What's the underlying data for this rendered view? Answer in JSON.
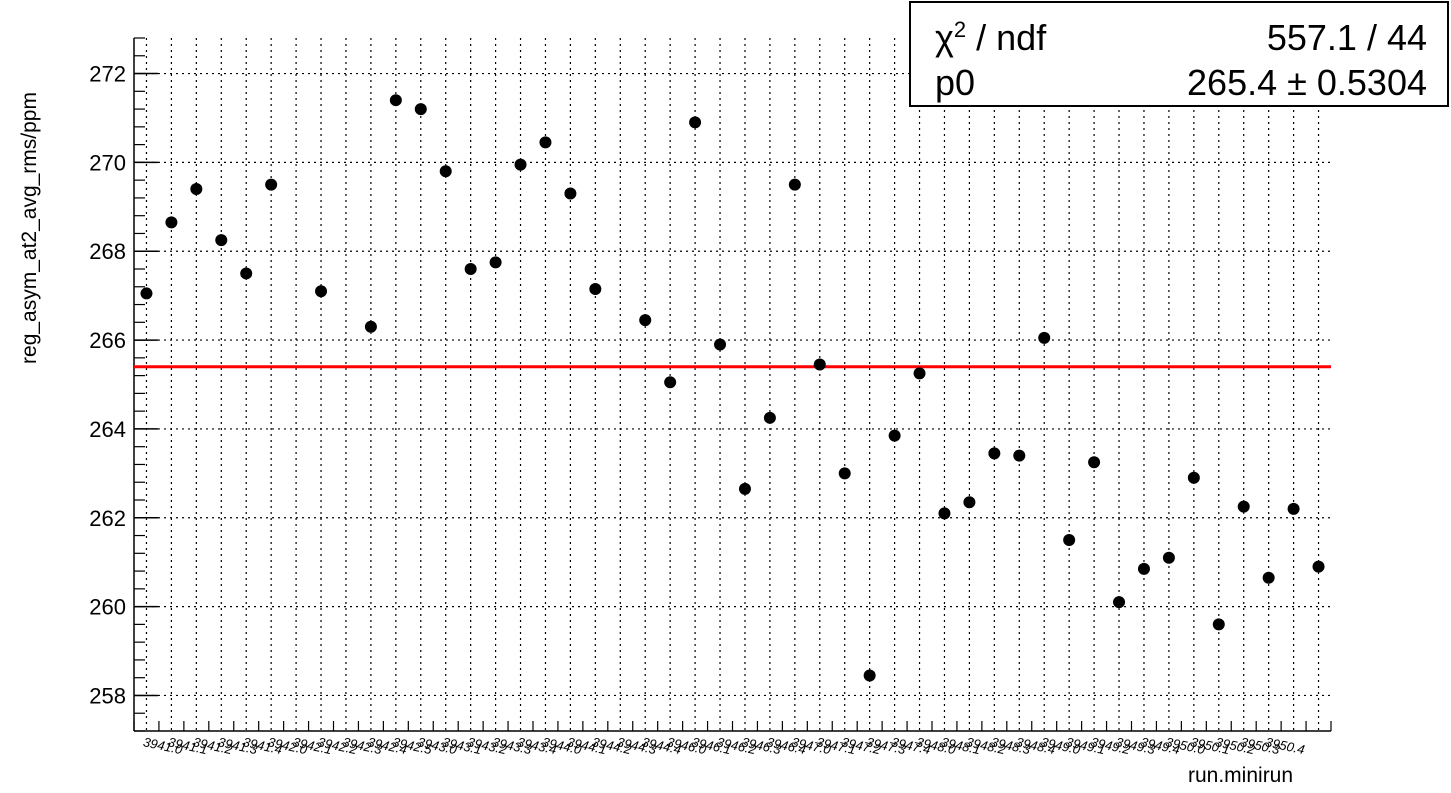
{
  "chart_data": {
    "type": "scatter",
    "xlabel": "run.minirun",
    "ylabel": "reg_asym_at2_avg_rms/ppm",
    "ylim": [
      257.2,
      272.8
    ],
    "y_ticks": [
      258,
      260,
      262,
      264,
      266,
      268,
      270,
      272
    ],
    "grid": true,
    "x_tick_labels": [
      "3941.0",
      "3941.1",
      "3941.2",
      "3941.3",
      "3941.4",
      "3942.0",
      "3942.1",
      "3942.2",
      "3942.3",
      "3942.4",
      "3942.5",
      "3943.0",
      "3943.1",
      "3943.2",
      "3943.3",
      "3943.4",
      "3944.0",
      "3944.1",
      "3944.2",
      "3944.3",
      "3944.4",
      "3946.0",
      "3946.1",
      "3946.2",
      "3946.3",
      "3946.4",
      "3947.0",
      "3947.1",
      "3947.2",
      "3947.3",
      "3947.4",
      "3948.0",
      "3948.1",
      "3948.2",
      "3948.3",
      "3948.4",
      "3949.0",
      "3949.1",
      "3949.2",
      "3949.3",
      "3949.4",
      "3950.0",
      "3950.1",
      "3950.2",
      "3950.3",
      "3950.4"
    ],
    "series": [
      {
        "color": "#000000",
        "values": [
          {
            "x": 0,
            "y": 267.05
          },
          {
            "x": 1,
            "y": 268.65
          },
          {
            "x": 2,
            "y": 269.4
          },
          {
            "x": 3,
            "y": 268.25
          },
          {
            "x": 4,
            "y": 267.5
          },
          {
            "x": 5,
            "y": 269.5
          },
          {
            "x": 7,
            "y": 267.1
          },
          {
            "x": 9,
            "y": 266.3
          },
          {
            "x": 10,
            "y": 271.4
          },
          {
            "x": 11,
            "y": 271.2
          },
          {
            "x": 12,
            "y": 269.8
          },
          {
            "x": 13,
            "y": 267.6
          },
          {
            "x": 14,
            "y": 267.75
          },
          {
            "x": 15,
            "y": 269.95
          },
          {
            "x": 16,
            "y": 270.45
          },
          {
            "x": 17,
            "y": 269.3
          },
          {
            "x": 18,
            "y": 267.15
          },
          {
            "x": 20,
            "y": 266.45
          },
          {
            "x": 21,
            "y": 265.05
          },
          {
            "x": 22,
            "y": 270.9
          },
          {
            "x": 23,
            "y": 265.9
          },
          {
            "x": 24,
            "y": 262.65
          },
          {
            "x": 25,
            "y": 264.25
          },
          {
            "x": 26,
            "y": 269.5
          },
          {
            "x": 27,
            "y": 265.45
          },
          {
            "x": 28,
            "y": 263.0
          },
          {
            "x": 29,
            "y": 258.45
          },
          {
            "x": 30,
            "y": 263.85
          },
          {
            "x": 31,
            "y": 265.25
          },
          {
            "x": 32,
            "y": 262.1
          },
          {
            "x": 33,
            "y": 262.35
          },
          {
            "x": 34,
            "y": 263.45
          },
          {
            "x": 35,
            "y": 263.4
          },
          {
            "x": 36,
            "y": 266.05
          },
          {
            "x": 37,
            "y": 261.5
          },
          {
            "x": 38,
            "y": 263.25
          },
          {
            "x": 39,
            "y": 260.1
          },
          {
            "x": 40,
            "y": 260.85
          },
          {
            "x": 41,
            "y": 261.1
          },
          {
            "x": 42,
            "y": 262.9
          },
          {
            "x": 43,
            "y": 259.6
          },
          {
            "x": 44,
            "y": 262.25
          },
          {
            "x": 45,
            "y": 260.65
          },
          {
            "x": 46,
            "y": 262.2
          },
          {
            "x": 47,
            "y": 260.9
          }
        ]
      }
    ],
    "fit_line": {
      "y": 265.4,
      "color": "#ff0000"
    }
  },
  "stats_box": {
    "chi2_label": "χ",
    "chi2_sup": "2",
    "ndf_label": " / ndf",
    "chi2_value": "557.1 / 44",
    "p0_label": "p0",
    "p0_value": "265.4 ± 0.5304"
  }
}
